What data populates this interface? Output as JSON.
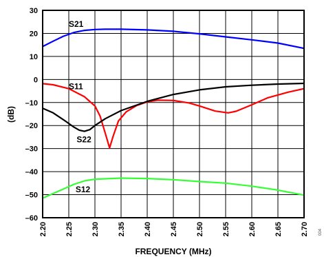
{
  "chart_data": {
    "type": "line",
    "title": "",
    "xlabel": "FREQUENCY (MHz)",
    "ylabel": "(dB)",
    "xlim": [
      2.2,
      2.7
    ],
    "ylim": [
      -60,
      30
    ],
    "x_ticks": [
      "2.20",
      "2.25",
      "2.30",
      "2.35",
      "2.40",
      "2.45",
      "2.50",
      "2.55",
      "2.60",
      "2.65",
      "2.70"
    ],
    "y_ticks": [
      "30",
      "20",
      "10",
      "0",
      "–10",
      "–20",
      "–30",
      "–40",
      "–50",
      "–60"
    ],
    "x_tick_values": [
      2.2,
      2.25,
      2.3,
      2.35,
      2.4,
      2.45,
      2.5,
      2.55,
      2.6,
      2.65,
      2.7
    ],
    "y_tick_values": [
      30,
      20,
      10,
      0,
      -10,
      -20,
      -30,
      -40,
      -50,
      -60
    ],
    "grid": true,
    "side_note": "004",
    "series": [
      {
        "name": "S21",
        "color": "#0000ff",
        "label_at": [
          2.25,
          22.8
        ],
        "points": [
          [
            2.2,
            14.3
          ],
          [
            2.22,
            16.6
          ],
          [
            2.24,
            18.8
          ],
          [
            2.26,
            20.4
          ],
          [
            2.28,
            21.3
          ],
          [
            2.3,
            21.7
          ],
          [
            2.32,
            21.8
          ],
          [
            2.35,
            21.8
          ],
          [
            2.4,
            21.5
          ],
          [
            2.45,
            20.9
          ],
          [
            2.5,
            19.8
          ],
          [
            2.55,
            18.5
          ],
          [
            2.6,
            17.2
          ],
          [
            2.65,
            15.8
          ],
          [
            2.7,
            13.5
          ]
        ]
      },
      {
        "name": "S11",
        "color": "#ff0000",
        "label_at": [
          2.25,
          -4.2
        ],
        "points": [
          [
            2.2,
            -1.8
          ],
          [
            2.22,
            -2.3
          ],
          [
            2.25,
            -4.0
          ],
          [
            2.28,
            -7.5
          ],
          [
            2.3,
            -11.5
          ],
          [
            2.31,
            -16.0
          ],
          [
            2.32,
            -23.5
          ],
          [
            2.328,
            -29.7
          ],
          [
            2.335,
            -24.5
          ],
          [
            2.345,
            -18.0
          ],
          [
            2.36,
            -14.0
          ],
          [
            2.38,
            -11.3
          ],
          [
            2.4,
            -9.7
          ],
          [
            2.42,
            -9.0
          ],
          [
            2.45,
            -9.1
          ],
          [
            2.48,
            -10.2
          ],
          [
            2.5,
            -11.5
          ],
          [
            2.53,
            -13.7
          ],
          [
            2.555,
            -14.5
          ],
          [
            2.57,
            -13.8
          ],
          [
            2.6,
            -11.0
          ],
          [
            2.63,
            -8.0
          ],
          [
            2.67,
            -5.5
          ],
          [
            2.7,
            -4.0
          ]
        ]
      },
      {
        "name": "S22",
        "color": "#000000",
        "label_at": [
          2.265,
          -27.2
        ],
        "points": [
          [
            2.2,
            -12.5
          ],
          [
            2.22,
            -14.5
          ],
          [
            2.24,
            -17.5
          ],
          [
            2.26,
            -20.7
          ],
          [
            2.27,
            -22.0
          ],
          [
            2.28,
            -22.5
          ],
          [
            2.29,
            -21.8
          ],
          [
            2.3,
            -20.0
          ],
          [
            2.32,
            -17.0
          ],
          [
            2.35,
            -13.5
          ],
          [
            2.4,
            -9.5
          ],
          [
            2.45,
            -6.5
          ],
          [
            2.5,
            -4.5
          ],
          [
            2.55,
            -3.2
          ],
          [
            2.6,
            -2.5
          ],
          [
            2.65,
            -2.0
          ],
          [
            2.7,
            -1.7
          ]
        ]
      },
      {
        "name": "S12",
        "color": "#33ff33",
        "label_at": [
          2.263,
          -49.0
        ],
        "points": [
          [
            2.2,
            -51.5
          ],
          [
            2.22,
            -49.5
          ],
          [
            2.24,
            -47.5
          ],
          [
            2.26,
            -45.5
          ],
          [
            2.28,
            -44.0
          ],
          [
            2.3,
            -43.3
          ],
          [
            2.35,
            -42.8
          ],
          [
            2.4,
            -43.0
          ],
          [
            2.45,
            -43.5
          ],
          [
            2.5,
            -44.3
          ],
          [
            2.55,
            -45.0
          ],
          [
            2.6,
            -46.3
          ],
          [
            2.65,
            -48.0
          ],
          [
            2.7,
            -50.2
          ]
        ]
      }
    ]
  }
}
